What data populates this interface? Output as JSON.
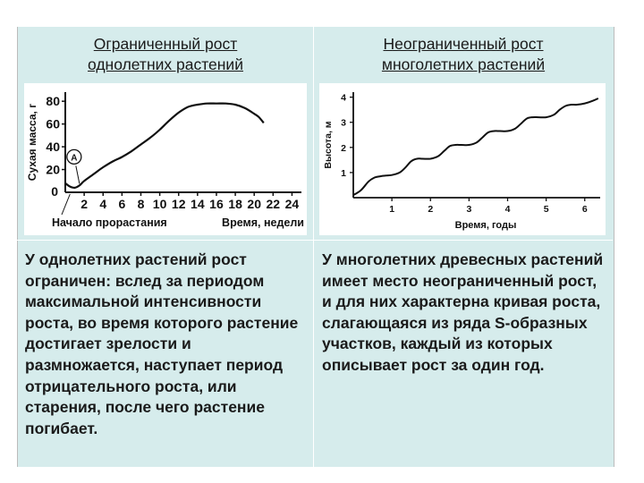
{
  "headers": {
    "left": [
      "Ограниченный рост",
      "однолетних растений"
    ],
    "right": [
      "Неограниченный рост",
      "многолетних растений"
    ]
  },
  "texts": {
    "left": "У однолетних растений рост ограничен: вслед за периодом максимальной интенсивности роста, во время которого растение достигает зрелости и размножается, наступает период отрицательного роста, или старения, после чего растение погибает.",
    "right": "У многолетних древесных растений имеет место неограниченный рост, и для них характерна кривая роста, слагающаяся из ряда S-образных участков, каждый из которых описывает рост за один год."
  },
  "colors": {
    "background": "#d6ecec",
    "line": "#111111"
  },
  "chart_data": [
    {
      "type": "line",
      "xlabel": "Время, недели",
      "ylabel": "Сухая масса, г",
      "x_ticks": [
        "2",
        "4",
        "6",
        "8",
        "10",
        "12",
        "14",
        "16",
        "18",
        "20",
        "22",
        "24"
      ],
      "y_ticks": [
        "20",
        "40",
        "60",
        "80"
      ],
      "xlim": [
        0,
        25
      ],
      "ylim": [
        0,
        88
      ],
      "origin_label": "0",
      "annotation_start": "Начало прорастания",
      "annotation_point": "A",
      "series": [
        {
          "x": [
            0,
            0.5,
            1,
            1.5,
            2,
            3,
            4,
            5,
            6,
            7,
            8,
            9,
            10,
            11,
            12,
            13,
            14,
            15,
            16,
            17,
            18,
            19,
            20,
            20.5,
            21
          ],
          "y": [
            8,
            5,
            4,
            6,
            10,
            16,
            22,
            27,
            31,
            36,
            42,
            48,
            55,
            63,
            70,
            75,
            77,
            78,
            78,
            78,
            77,
            74,
            69,
            66,
            61
          ]
        }
      ]
    },
    {
      "type": "line",
      "xlabel": "Время, годы",
      "ylabel": "Высота, м",
      "x_ticks": [
        "1",
        "2",
        "3",
        "4",
        "5",
        "6"
      ],
      "y_ticks": [
        "1",
        "2",
        "3",
        "4"
      ],
      "xlim": [
        0,
        6.4
      ],
      "ylim": [
        0,
        4.2
      ],
      "series": [
        {
          "x": [
            0,
            0.2,
            0.4,
            0.55,
            0.7,
            0.85,
            1.0,
            1.2,
            1.35,
            1.5,
            1.65,
            1.8,
            2.0,
            2.2,
            2.35,
            2.5,
            2.65,
            2.8,
            3.0,
            3.2,
            3.35,
            3.5,
            3.65,
            3.8,
            4.0,
            4.2,
            4.35,
            4.5,
            4.65,
            4.8,
            5.0,
            5.2,
            5.35,
            5.5,
            5.65,
            5.8,
            6.0,
            6.2,
            6.35
          ],
          "y": [
            0.1,
            0.3,
            0.65,
            0.8,
            0.85,
            0.88,
            0.9,
            1.0,
            1.2,
            1.45,
            1.55,
            1.55,
            1.55,
            1.65,
            1.85,
            2.05,
            2.1,
            2.1,
            2.1,
            2.2,
            2.4,
            2.6,
            2.65,
            2.65,
            2.65,
            2.75,
            2.95,
            3.15,
            3.2,
            3.2,
            3.2,
            3.3,
            3.5,
            3.65,
            3.7,
            3.7,
            3.75,
            3.85,
            3.95
          ]
        }
      ]
    }
  ]
}
